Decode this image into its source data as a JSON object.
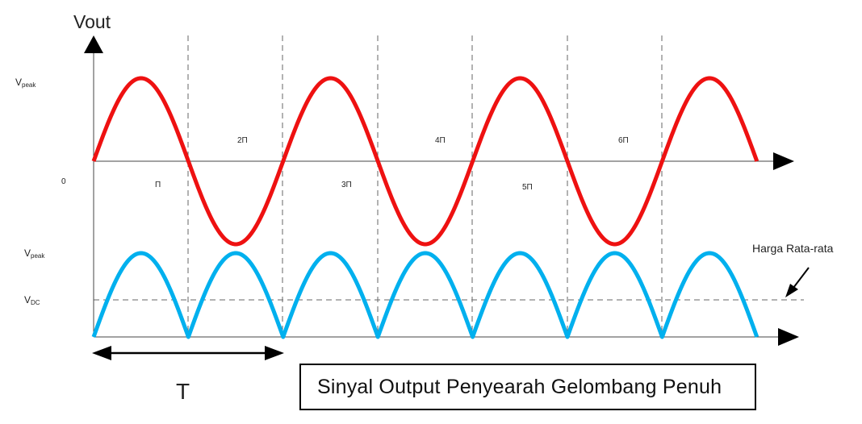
{
  "labels": {
    "y_axis": "Vout",
    "vpeak_top_main": "V",
    "vpeak_top_sub": "peak",
    "vpeak_bottom_main": "V",
    "vpeak_bottom_sub": "peak",
    "vdc_main": "V",
    "vdc_sub": "DC",
    "origin": "0",
    "period": "T",
    "average": "Harga Rata-rata",
    "caption": "Sinyal Output Penyearah Gelombang Penuh"
  },
  "phase_labels": [
    "Π",
    "2Π",
    "3Π",
    "4Π",
    "5Π",
    "6Π"
  ],
  "colors": {
    "input_wave": "#ee1111",
    "output_wave": "#00b0ee",
    "axis": "#000000",
    "dashed": "#666666"
  }
}
